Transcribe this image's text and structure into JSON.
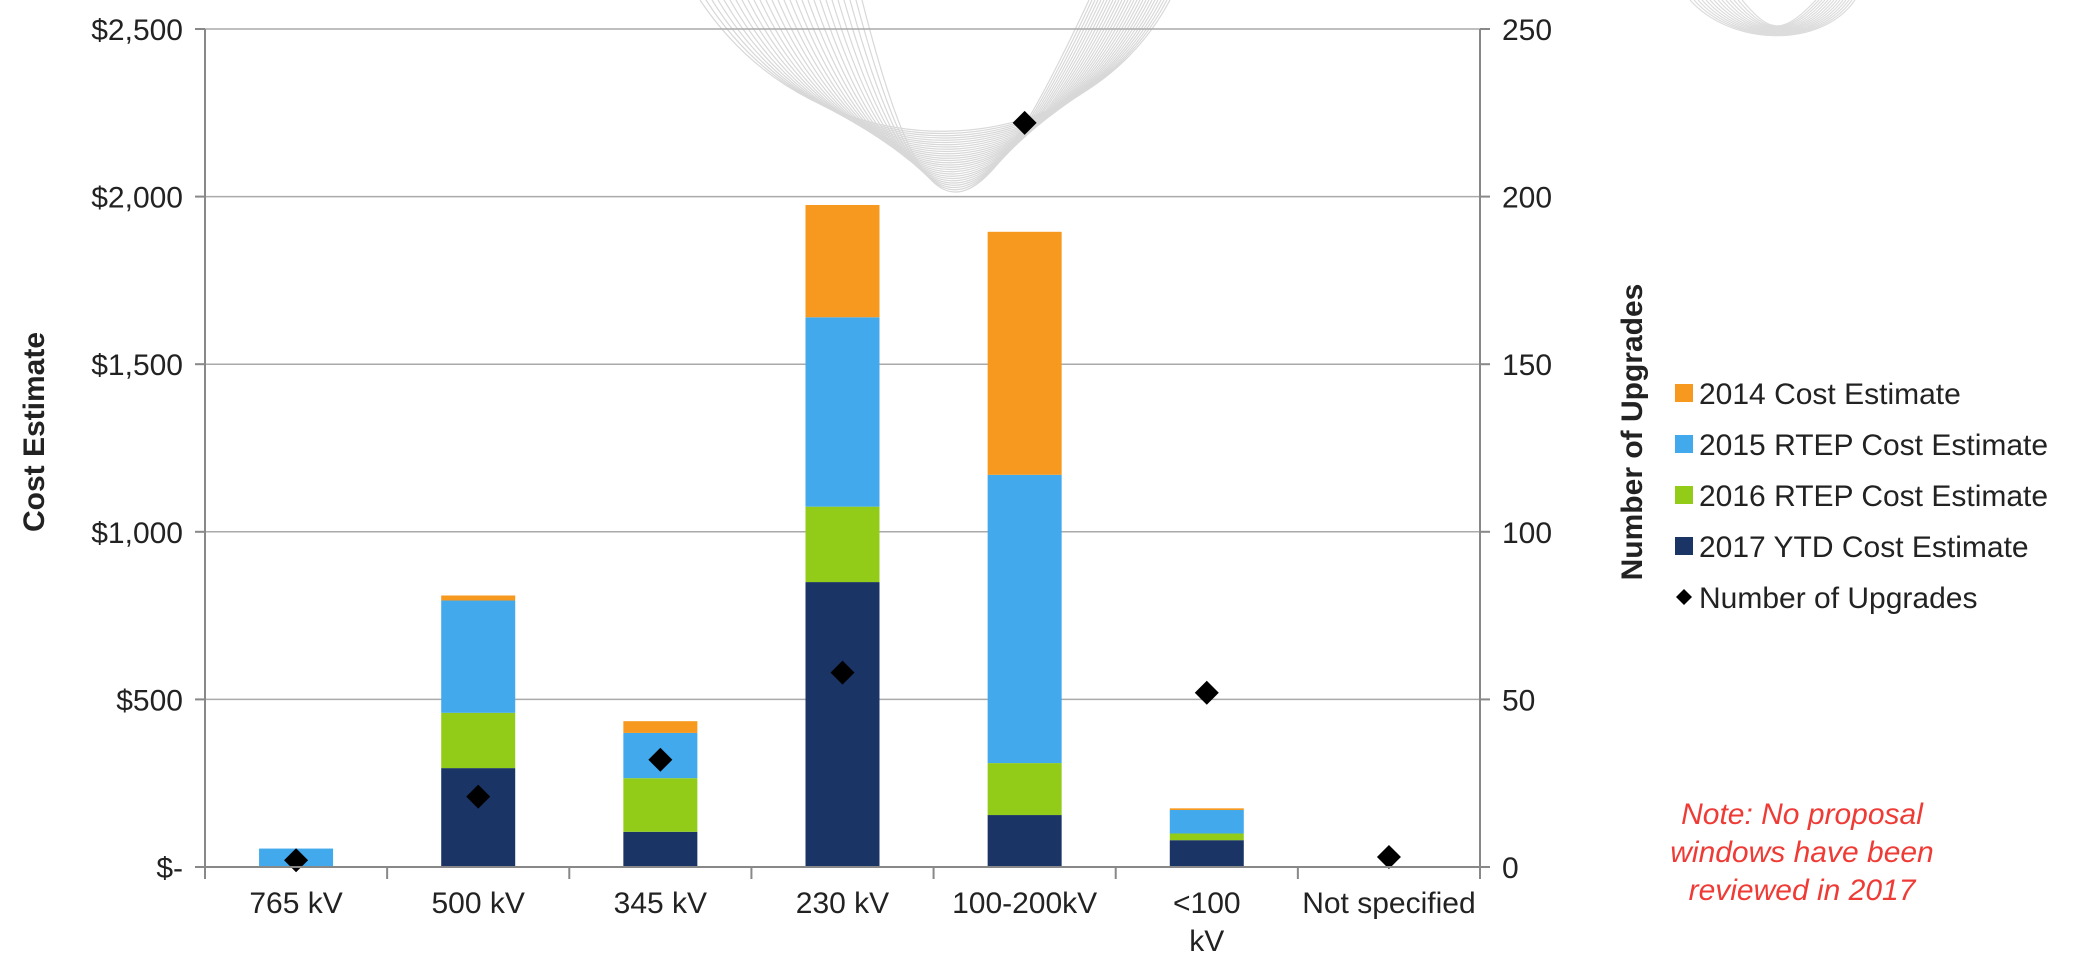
{
  "chart_data": {
    "type": "bar",
    "stacked": true,
    "categories": [
      "765 kV",
      "500 kV",
      "345 kV",
      "230 kV",
      "100-200kV",
      "<100 kV",
      "Not specified"
    ],
    "series": [
      {
        "name": "2017 YTD Cost Estimate",
        "color": "#1b3466",
        "values": [
          0,
          295,
          105,
          850,
          155,
          80,
          0
        ]
      },
      {
        "name": "2016 RTEP Cost Estimate",
        "color": "#92cc18",
        "values": [
          0,
          165,
          160,
          225,
          155,
          20,
          0
        ]
      },
      {
        "name": "2015 RTEP Cost Estimate",
        "color": "#41a9ec",
        "values": [
          55,
          335,
          135,
          565,
          860,
          70,
          0
        ]
      },
      {
        "name": "2014 Cost Estimate",
        "color": "#f6991e",
        "values": [
          0,
          15,
          35,
          335,
          725,
          5,
          0
        ]
      }
    ],
    "secondary_series": {
      "name": "Number of Upgrades",
      "type": "scatter",
      "marker": "diamond",
      "color": "#000000",
      "values": [
        2,
        21,
        32,
        58,
        222,
        52,
        3
      ]
    },
    "ylabel": "Cost Estimate",
    "y2label": "Number of Upgrades",
    "ylim": [
      0,
      2500
    ],
    "y2lim": [
      0,
      250
    ],
    "yticks": [
      0,
      500,
      1000,
      1500,
      2000,
      2500
    ],
    "ytick_labels": [
      "$-",
      "$500",
      "$1,000",
      "$1,500",
      "$2,000",
      "$2,500"
    ],
    "y2ticks": [
      0,
      50,
      100,
      150,
      200,
      250
    ],
    "y2tick_labels": [
      "0",
      "50",
      "100",
      "150",
      "200",
      "250"
    ],
    "grid": true,
    "legend": {
      "placement": "right",
      "entries": [
        {
          "label": "2014 Cost Estimate",
          "color": "#f6991e",
          "marker": "square"
        },
        {
          "label": "2015 RTEP Cost Estimate",
          "color": "#41a9ec",
          "marker": "square"
        },
        {
          "label": "2016 RTEP Cost Estimate",
          "color": "#92cc18",
          "marker": "square"
        },
        {
          "label": "2017 YTD Cost Estimate",
          "color": "#1b3466",
          "marker": "square"
        },
        {
          "label": "Number of Upgrades",
          "color": "#000000",
          "marker": "diamond"
        }
      ]
    },
    "annotation": "Note: No proposal\nwindows have been\nreviewed in 2017",
    "colors": {
      "grid": "#aaaaaa",
      "axis": "#888888",
      "note": "#ef3b36"
    }
  }
}
